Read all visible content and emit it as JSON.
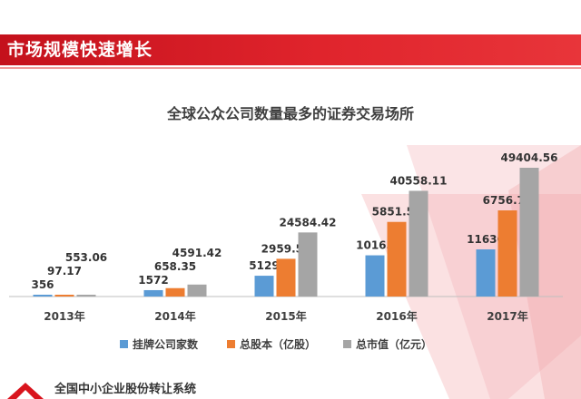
{
  "header": {
    "title": "市场规模快速增长"
  },
  "footer": {
    "text": "全国中小企业股份转让系统"
  },
  "colors": {
    "accent": "#d9141d",
    "series1": "#5b9bd5",
    "series2": "#ed7d31",
    "series3": "#a5a5a5"
  },
  "chart_data": {
    "type": "bar",
    "title": "全球公众公司数量最多的证券交易场所",
    "categories": [
      "2013年",
      "2014年",
      "2015年",
      "2016年",
      "2017年"
    ],
    "series": [
      {
        "name": "挂牌公司家数",
        "values": [
          356,
          1572,
          5129,
          10163,
          11630
        ],
        "labels": [
          "356",
          "1572",
          "5129",
          "10163",
          "11630"
        ]
      },
      {
        "name": "总股本（亿股）",
        "values": [
          97.17,
          658.35,
          2959.51,
          5851.55,
          6756.73
        ],
        "labels": [
          "97.17",
          "658.35",
          "2959.51",
          "5851.55",
          "6756.73"
        ]
      },
      {
        "name": "总市值（亿元）",
        "values": [
          553.06,
          4591.42,
          24584.42,
          40558.11,
          49404.56
        ],
        "labels": [
          "553.06",
          "4591.42",
          "24584.42",
          "40558.11",
          "49404.56"
        ]
      }
    ],
    "legend_position": "bottom",
    "grid": false
  }
}
